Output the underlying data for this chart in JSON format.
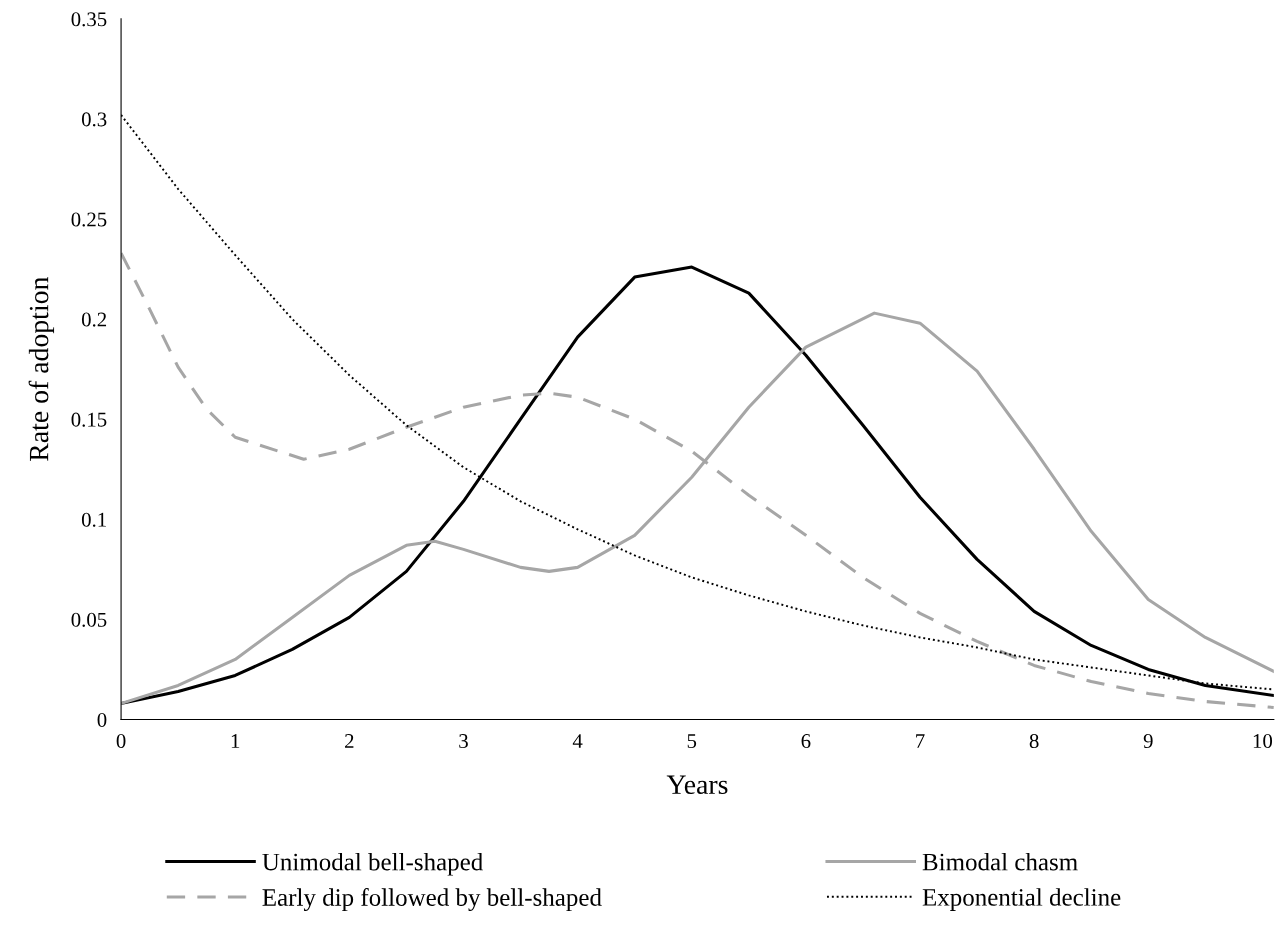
{
  "chart_data": {
    "type": "line",
    "xlabel": "Years",
    "ylabel": "Rate of adoption",
    "x": [
      0,
      0.5,
      1,
      1.5,
      2,
      2.5,
      3,
      3.5,
      4,
      4.5,
      5,
      5.5,
      6,
      6.5,
      7,
      7.5,
      8,
      8.5,
      9,
      9.5,
      10.1
    ],
    "series": [
      {
        "name": "Unimodal bell-shaped",
        "color": "#000000",
        "line_style": "solid",
        "values": [
          0.008,
          0.014,
          0.022,
          0.035,
          0.051,
          0.074,
          0.109,
          0.15,
          0.191,
          0.221,
          0.226,
          0.213,
          0.182,
          0.147,
          0.111,
          0.08,
          0.054,
          0.037,
          0.025,
          0.017,
          0.012
        ]
      },
      {
        "name": "Bimodal chasm",
        "color": "#a6a6a6",
        "line_style": "solid",
        "x": [
          0,
          0.5,
          1,
          1.5,
          2,
          2.5,
          2.75,
          3,
          3.5,
          3.75,
          4,
          4.5,
          5,
          5.5,
          6,
          6.6,
          7,
          7.5,
          8,
          8.5,
          9,
          9.5,
          10.1
        ],
        "values": [
          0.008,
          0.017,
          0.03,
          0.051,
          0.072,
          0.087,
          0.089,
          0.085,
          0.076,
          0.074,
          0.076,
          0.092,
          0.121,
          0.156,
          0.186,
          0.203,
          0.198,
          0.174,
          0.135,
          0.094,
          0.06,
          0.041,
          0.024
        ]
      },
      {
        "name": "Early dip followed by bell-shaped",
        "color": "#a6a6a6",
        "line_style": "dashed",
        "x": [
          0,
          0.25,
          0.5,
          0.75,
          1,
          1.6,
          2,
          2.5,
          3,
          3.5,
          3.75,
          4,
          4.5,
          5,
          5.5,
          6,
          6.5,
          7,
          7.5,
          8,
          8.5,
          9,
          9.5,
          10.1
        ],
        "values": [
          0.233,
          0.205,
          0.176,
          0.155,
          0.141,
          0.13,
          0.135,
          0.146,
          0.156,
          0.162,
          0.163,
          0.161,
          0.15,
          0.134,
          0.112,
          0.092,
          0.071,
          0.053,
          0.039,
          0.027,
          0.019,
          0.013,
          0.009,
          0.006
        ]
      },
      {
        "name": "Exponential decline",
        "color": "#000000",
        "line_style": "dotted",
        "values": [
          0.302,
          0.265,
          0.232,
          0.2,
          0.172,
          0.147,
          0.126,
          0.109,
          0.095,
          0.082,
          0.071,
          0.062,
          0.054,
          0.047,
          0.041,
          0.036,
          0.03,
          0.026,
          0.022,
          0.018,
          0.015
        ]
      }
    ],
    "xlim": [
      0,
      10.1
    ],
    "xticks": [
      0,
      1,
      2,
      3,
      4,
      5,
      6,
      7,
      8,
      9,
      10
    ],
    "ylim": [
      0,
      0.35
    ],
    "yticks": [
      0,
      0.05,
      0.1,
      0.15,
      0.2,
      0.25,
      0.3,
      0.35
    ],
    "grid": false,
    "legend": "bottom",
    "marker": "none"
  }
}
